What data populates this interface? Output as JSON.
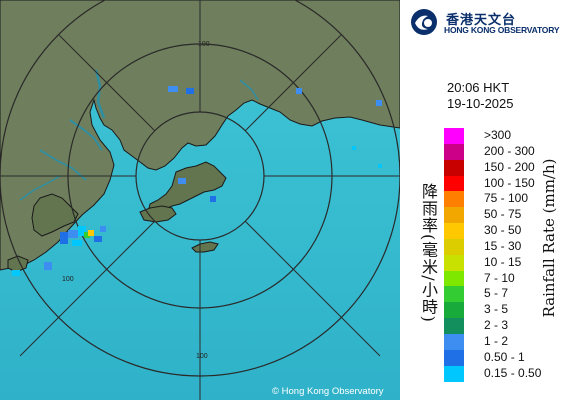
{
  "map": {
    "range_rings": [
      {
        "label": "100"
      },
      {
        "label": "100"
      },
      {
        "label": "100"
      }
    ],
    "copyright": "© Hong Kong Observatory"
  },
  "logo": {
    "name_cn": "香港天文台",
    "name_en": "HONG KONG OBSERVATORY"
  },
  "timestamp": {
    "time": "20:06 HKT",
    "date": "19-10-2025"
  },
  "legend": {
    "title_cn": "降雨率(毫米/小時)",
    "title_en": "Rainfall Rate (mm/h)",
    "items": [
      {
        "label": ">300",
        "color": "#ff00ff"
      },
      {
        "label": "200 - 300",
        "color": "#cc0088"
      },
      {
        "label": "150 - 200",
        "color": "#c80000"
      },
      {
        "label": "100 - 150",
        "color": "#ff0000"
      },
      {
        "label": "75 - 100",
        "color": "#ff7f00"
      },
      {
        "label": "50 - 75",
        "color": "#f2a700"
      },
      {
        "label": "30 - 50",
        "color": "#ffc800"
      },
      {
        "label": "15 - 30",
        "color": "#dccd00"
      },
      {
        "label": "10 - 15",
        "color": "#c8e100"
      },
      {
        "label": "7 - 10",
        "color": "#7fe800"
      },
      {
        "label": "5 - 7",
        "color": "#33cc33"
      },
      {
        "label": "3 - 5",
        "color": "#19aa3c"
      },
      {
        "label": "2 - 3",
        "color": "#138f5e"
      },
      {
        "label": "1 - 2",
        "color": "#3d8ef0"
      },
      {
        "label": "0.50 - 1",
        "color": "#1f6fe6"
      },
      {
        "label": "0.15 - 0.50",
        "color": "#00c8ff"
      }
    ]
  }
}
